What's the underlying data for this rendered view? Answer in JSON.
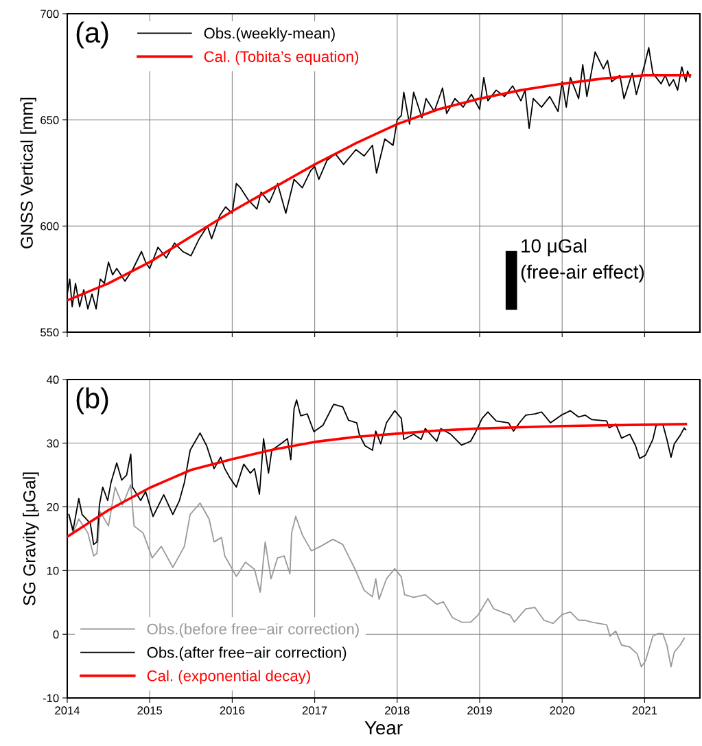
{
  "chart_data": [
    {
      "type": "line",
      "ylabel": "GNSS Vertical [mm]",
      "xlim": [
        2014,
        2021.67
      ],
      "xticks": [
        2014,
        2015,
        2016,
        2017,
        2018,
        2019,
        2020,
        2021
      ],
      "ylim": [
        550,
        700
      ],
      "yticks": [
        550,
        600,
        650,
        700
      ],
      "grid": true,
      "legend": "top left",
      "tick_labels": "y",
      "annotations": [
        "(a)",
        "10 μGal\n(free-air effect)"
      ],
      "series": [
        {
          "name": "Obs.(weekly-mean)",
          "color": "#000000",
          "x": [
            2014.0,
            2014.03,
            2014.06,
            2014.1,
            2014.15,
            2014.2,
            2014.25,
            2014.3,
            2014.35,
            2014.4,
            2014.45,
            2014.5,
            2014.55,
            2014.6,
            2014.7,
            2014.8,
            2014.9,
            2014.95,
            2015.0,
            2015.1,
            2015.2,
            2015.3,
            2015.4,
            2015.5,
            2015.6,
            2015.7,
            2015.75,
            2015.85,
            2015.92,
            2016.0,
            2016.05,
            2016.1,
            2016.2,
            2016.3,
            2016.35,
            2016.45,
            2016.55,
            2016.65,
            2016.75,
            2016.85,
            2016.95,
            2017.0,
            2017.05,
            2017.15,
            2017.25,
            2017.35,
            2017.5,
            2017.6,
            2017.7,
            2017.75,
            2017.85,
            2017.95,
            2018.0,
            2018.05,
            2018.08,
            2018.15,
            2018.2,
            2018.3,
            2018.35,
            2018.45,
            2018.55,
            2018.6,
            2018.7,
            2018.8,
            2018.9,
            2019.0,
            2019.05,
            2019.1,
            2019.2,
            2019.3,
            2019.4,
            2019.5,
            2019.55,
            2019.6,
            2019.65,
            2019.75,
            2019.85,
            2019.95,
            2020.0,
            2020.05,
            2020.1,
            2020.2,
            2020.25,
            2020.3,
            2020.4,
            2020.5,
            2020.55,
            2020.6,
            2020.7,
            2020.75,
            2020.85,
            2020.9,
            2021.0,
            2021.05,
            2021.1,
            2021.2,
            2021.25,
            2021.3,
            2021.35,
            2021.4,
            2021.45,
            2021.5,
            2021.52,
            2021.55
          ],
          "values": [
            568,
            575,
            562,
            573,
            562,
            570,
            561,
            568,
            561,
            575,
            573,
            583,
            577,
            580,
            574,
            580,
            588,
            583,
            580,
            590,
            585,
            592,
            588,
            586,
            594,
            600,
            594,
            605,
            609,
            606,
            620,
            618,
            612,
            608,
            616,
            611,
            620,
            606,
            622,
            618,
            626,
            628,
            622,
            631,
            634,
            629,
            636,
            633,
            638,
            625,
            641,
            638,
            650,
            652,
            663,
            648,
            663,
            651,
            660,
            654,
            665,
            653,
            660,
            656,
            662,
            655,
            670,
            659,
            664,
            661,
            666,
            659,
            664,
            646,
            660,
            656,
            661,
            654,
            668,
            656,
            670,
            660,
            676,
            661,
            682,
            674,
            678,
            668,
            671,
            660,
            672,
            662,
            676,
            684,
            672,
            667,
            671,
            666,
            669,
            664,
            675,
            668,
            673,
            670
          ]
        },
        {
          "name": "Cal. (Tobita’s equation)",
          "color": "#ff0000",
          "x": [
            2014,
            2014.5,
            2015,
            2015.5,
            2016,
            2016.5,
            2017,
            2017.5,
            2018,
            2018.5,
            2019,
            2019.5,
            2020,
            2020.5,
            2021,
            2021.55
          ],
          "values": [
            565,
            573,
            583,
            595,
            607,
            618,
            629,
            639,
            648,
            655,
            660,
            664,
            667,
            669.5,
            671,
            671
          ]
        }
      ]
    },
    {
      "type": "line",
      "ylabel": "SG Gravity [μGal]",
      "xlabel": "Year",
      "xlim": [
        2014,
        2021.67
      ],
      "xticks": [
        2014,
        2015,
        2016,
        2017,
        2018,
        2019,
        2020,
        2021
      ],
      "ylim": [
        -10,
        40
      ],
      "yticks": [
        -10,
        0,
        10,
        20,
        30,
        40
      ],
      "grid": true,
      "legend": "bottom left",
      "annotations": [
        "(b)"
      ],
      "series": [
        {
          "name": "Obs.(before free−air correction)",
          "color": "#999999",
          "x": [
            2014.02,
            2014.07,
            2014.14,
            2014.25,
            2014.32,
            2014.36,
            2014.4,
            2014.5,
            2014.58,
            2014.67,
            2014.77,
            2014.81,
            2014.92,
            2015.03,
            2015.14,
            2015.28,
            2015.42,
            2015.49,
            2015.61,
            2015.72,
            2015.78,
            2015.87,
            2015.91,
            2016.05,
            2016.16,
            2016.27,
            2016.34,
            2016.4,
            2016.47,
            2016.55,
            2016.63,
            2016.7,
            2016.72,
            2016.77,
            2016.85,
            2016.96,
            2017.07,
            2017.22,
            2017.34,
            2017.49,
            2017.6,
            2017.7,
            2017.74,
            2017.78,
            2017.87,
            2017.97,
            2018.05,
            2018.09,
            2018.2,
            2018.34,
            2018.48,
            2018.56,
            2018.67,
            2018.78,
            2018.89,
            2018.98,
            2019.1,
            2019.17,
            2019.37,
            2019.42,
            2019.56,
            2019.67,
            2019.78,
            2019.89,
            2020.0,
            2020.1,
            2020.2,
            2020.28,
            2020.36,
            2020.54,
            2020.58,
            2020.65,
            2020.72,
            2020.82,
            2020.91,
            2020.96,
            2021.01,
            2021.1,
            2021.16,
            2021.22,
            2021.27,
            2021.32,
            2021.36,
            2021.43,
            2021.48
          ],
          "values": [
            18.8,
            15.9,
            18.1,
            15.9,
            12.3,
            12.7,
            19.2,
            17,
            23.1,
            20.3,
            23.5,
            17,
            15.9,
            12,
            13.8,
            10.5,
            13.8,
            18.8,
            20.6,
            18.1,
            14.5,
            15.2,
            12.3,
            9.1,
            11.3,
            10.2,
            6.6,
            14.5,
            8.7,
            12,
            12.3,
            9.5,
            15.9,
            18.5,
            15.6,
            13.1,
            13.8,
            14.9,
            14.1,
            10.2,
            6.9,
            5.9,
            8.7,
            5.5,
            8.7,
            10.3,
            9,
            6.2,
            5.8,
            6.2,
            4.7,
            5.1,
            2.6,
            1.9,
            1.9,
            3,
            5.6,
            4,
            3,
            1.9,
            4,
            4.2,
            2.2,
            1.7,
            3.1,
            3.5,
            2.2,
            2.2,
            1.9,
            1.5,
            -0.3,
            0.5,
            -1.7,
            -2,
            -3.1,
            -5.1,
            -4.2,
            -0.3,
            0.1,
            0.1,
            -1.7,
            -5.1,
            -2.8,
            -1.7,
            -0.6
          ]
        },
        {
          "name": "Obs.(after free−air correction)",
          "color": "#000000",
          "x": [
            2014.02,
            2014.07,
            2014.14,
            2014.18,
            2014.28,
            2014.32,
            2014.36,
            2014.39,
            2014.43,
            2014.49,
            2014.53,
            2014.6,
            2014.66,
            2014.72,
            2014.77,
            2014.79,
            2014.89,
            2014.95,
            2015.04,
            2015.17,
            2015.28,
            2015.36,
            2015.42,
            2015.49,
            2015.61,
            2015.69,
            2015.78,
            2015.86,
            2015.91,
            2015.97,
            2016.05,
            2016.14,
            2016.22,
            2016.27,
            2016.33,
            2016.38,
            2016.44,
            2016.48,
            2016.6,
            2016.67,
            2016.71,
            2016.75,
            2016.78,
            2016.83,
            2016.91,
            2016.99,
            2017.1,
            2017.23,
            2017.34,
            2017.41,
            2017.51,
            2017.54,
            2017.61,
            2017.7,
            2017.74,
            2017.8,
            2017.87,
            2017.97,
            2018.05,
            2018.08,
            2018.2,
            2018.29,
            2018.34,
            2018.48,
            2018.53,
            2018.65,
            2018.78,
            2018.89,
            2018.95,
            2019.03,
            2019.1,
            2019.2,
            2019.35,
            2019.41,
            2019.5,
            2019.56,
            2019.67,
            2019.75,
            2019.86,
            2019.99,
            2020.1,
            2020.2,
            2020.28,
            2020.36,
            2020.54,
            2020.57,
            2020.65,
            2020.72,
            2020.82,
            2020.89,
            2020.94,
            2021.01,
            2021.1,
            2021.14,
            2021.22,
            2021.27,
            2021.32,
            2021.36,
            2021.43,
            2021.48,
            2021.5
          ],
          "values": [
            18.8,
            16.3,
            21.3,
            18.8,
            17.4,
            14.1,
            14.5,
            20.3,
            23.1,
            21,
            23.8,
            26.9,
            24.2,
            25,
            28.3,
            23.1,
            21,
            22.4,
            18.5,
            21.9,
            18.8,
            21,
            23.8,
            28.9,
            31.6,
            29.6,
            26,
            27.8,
            26,
            24.6,
            23.1,
            26.7,
            25.3,
            26,
            22,
            30.7,
            25.3,
            28.9,
            30,
            30.7,
            27.4,
            35.4,
            36.8,
            34.3,
            34.6,
            31.8,
            32.8,
            36.1,
            35.7,
            33.6,
            33.2,
            31.4,
            29.6,
            28.9,
            31.9,
            29.9,
            33.2,
            35.1,
            33.9,
            30.6,
            31.4,
            30.6,
            32.3,
            30.3,
            32.3,
            31.4,
            29.7,
            30.3,
            31.7,
            33.9,
            34.9,
            33.5,
            33.2,
            31.9,
            33.5,
            34.4,
            34.6,
            34.9,
            33.2,
            34.4,
            35.1,
            34.1,
            34.4,
            33.7,
            33.5,
            32.4,
            33,
            30.8,
            31.4,
            29.6,
            27.6,
            28.1,
            30.6,
            32.8,
            33,
            30.6,
            27.8,
            29.9,
            31.2,
            32.4,
            32.1
          ]
        },
        {
          "name": "Cal. (exponential decay)",
          "color": "#ff0000",
          "x": [
            2014,
            2014.5,
            2015,
            2015.5,
            2016,
            2016.5,
            2017,
            2017.5,
            2018,
            2018.5,
            2019,
            2019.5,
            2020,
            2020.5,
            2021,
            2021.5
          ],
          "values": [
            15.3,
            19.5,
            23,
            25.8,
            27.5,
            29,
            30.2,
            31,
            31.5,
            32,
            32.3,
            32.5,
            32.7,
            32.8,
            32.9,
            33
          ]
        }
      ]
    }
  ]
}
